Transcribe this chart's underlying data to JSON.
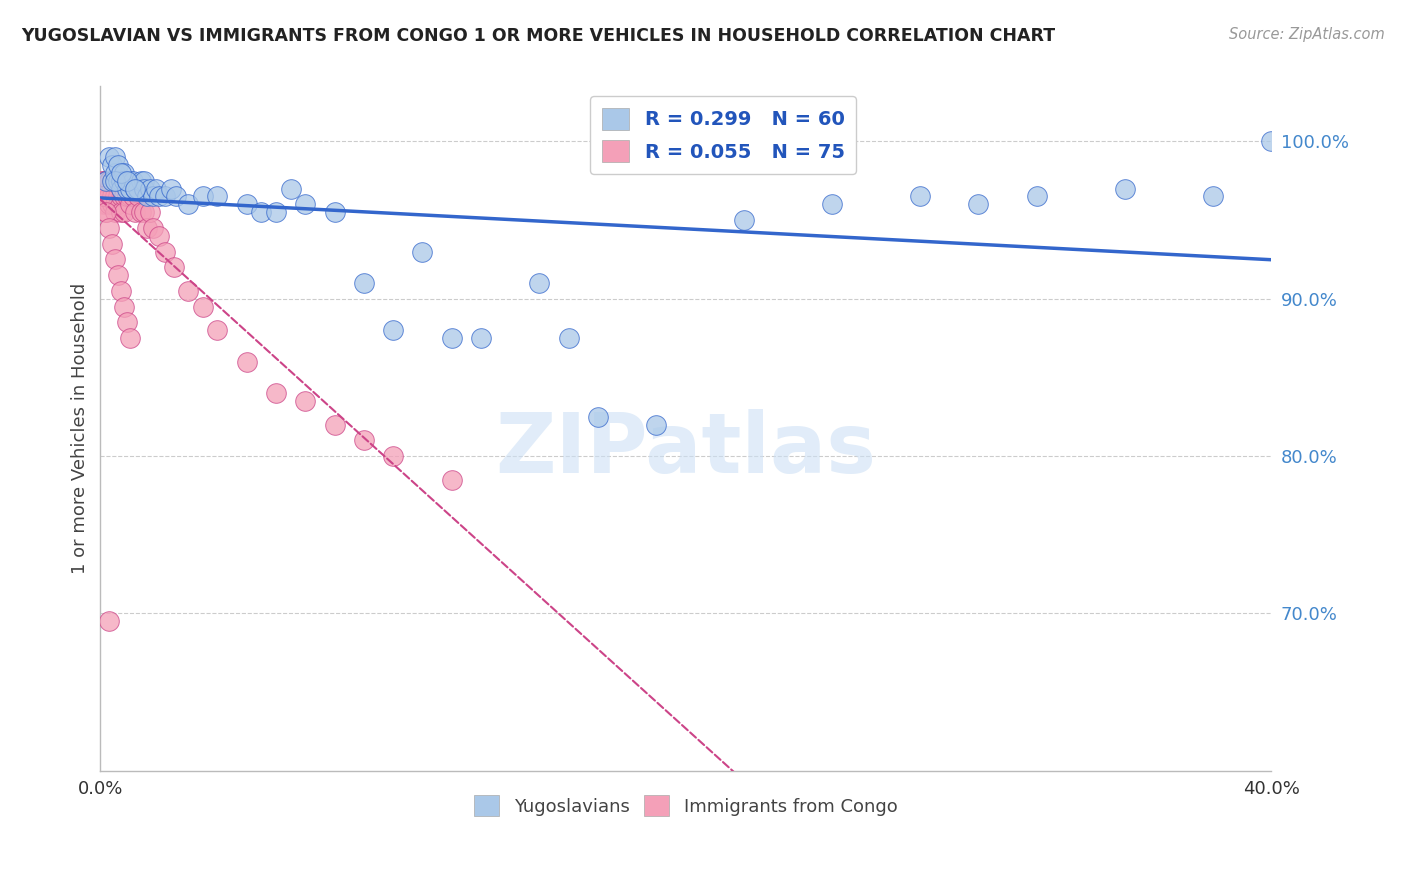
{
  "title": "YUGOSLAVIAN VS IMMIGRANTS FROM CONGO 1 OR MORE VEHICLES IN HOUSEHOLD CORRELATION CHART",
  "source": "Source: ZipAtlas.com",
  "ylabel": "1 or more Vehicles in Household",
  "legend_labels": [
    "Yugoslavians",
    "Immigrants from Congo"
  ],
  "R_yugo": 0.299,
  "N_yugo": 60,
  "R_congo": 0.055,
  "N_congo": 75,
  "xmin": 0.0,
  "xmax": 0.4,
  "ymin": 0.6,
  "ymax": 1.035,
  "yticks": [
    0.7,
    0.8,
    0.9,
    1.0
  ],
  "ytick_labels": [
    "70.0%",
    "80.0%",
    "90.0%",
    "100.0%"
  ],
  "xticks": [
    0.0,
    0.05,
    0.1,
    0.15,
    0.2,
    0.25,
    0.3,
    0.35,
    0.4
  ],
  "xtick_labels": [
    "0.0%",
    "",
    "",
    "",
    "",
    "",
    "",
    "",
    "40.0%"
  ],
  "color_yugo": "#aac8e8",
  "color_congo": "#f4a0b8",
  "trendline_yugo_color": "#3366cc",
  "trendline_congo_color": "#cc4488",
  "background_color": "#ffffff",
  "grid_color": "#cccccc",
  "yugo_x": [
    0.002,
    0.003,
    0.004,
    0.004,
    0.005,
    0.005,
    0.006,
    0.006,
    0.007,
    0.007,
    0.008,
    0.008,
    0.009,
    0.009,
    0.01,
    0.01,
    0.011,
    0.012,
    0.013,
    0.014,
    0.015,
    0.015,
    0.016,
    0.017,
    0.018,
    0.019,
    0.02,
    0.022,
    0.024,
    0.026,
    0.03,
    0.035,
    0.04,
    0.05,
    0.055,
    0.06,
    0.065,
    0.07,
    0.08,
    0.09,
    0.1,
    0.11,
    0.12,
    0.13,
    0.15,
    0.16,
    0.17,
    0.19,
    0.22,
    0.25,
    0.28,
    0.3,
    0.32,
    0.35,
    0.38,
    0.4,
    0.005,
    0.007,
    0.009,
    0.012
  ],
  "yugo_y": [
    0.975,
    0.99,
    0.985,
    0.975,
    0.98,
    0.99,
    0.975,
    0.985,
    0.975,
    0.97,
    0.98,
    0.975,
    0.97,
    0.975,
    0.975,
    0.97,
    0.975,
    0.97,
    0.97,
    0.975,
    0.975,
    0.97,
    0.965,
    0.97,
    0.965,
    0.97,
    0.965,
    0.965,
    0.97,
    0.965,
    0.96,
    0.965,
    0.965,
    0.96,
    0.955,
    0.955,
    0.97,
    0.96,
    0.955,
    0.91,
    0.88,
    0.93,
    0.875,
    0.875,
    0.91,
    0.875,
    0.825,
    0.82,
    0.95,
    0.96,
    0.965,
    0.96,
    0.965,
    0.97,
    0.965,
    1.0,
    0.975,
    0.98,
    0.975,
    0.97
  ],
  "congo_x": [
    0.001,
    0.001,
    0.001,
    0.001,
    0.001,
    0.002,
    0.002,
    0.002,
    0.002,
    0.002,
    0.002,
    0.003,
    0.003,
    0.003,
    0.003,
    0.003,
    0.004,
    0.004,
    0.004,
    0.004,
    0.005,
    0.005,
    0.005,
    0.005,
    0.005,
    0.005,
    0.005,
    0.006,
    0.006,
    0.006,
    0.006,
    0.007,
    0.007,
    0.007,
    0.007,
    0.008,
    0.008,
    0.008,
    0.009,
    0.009,
    0.01,
    0.01,
    0.01,
    0.011,
    0.012,
    0.013,
    0.014,
    0.015,
    0.016,
    0.017,
    0.018,
    0.02,
    0.022,
    0.025,
    0.03,
    0.035,
    0.04,
    0.05,
    0.06,
    0.07,
    0.08,
    0.09,
    0.1,
    0.12,
    0.001,
    0.002,
    0.003,
    0.004,
    0.005,
    0.006,
    0.007,
    0.008,
    0.009,
    0.01,
    0.003
  ],
  "congo_y": [
    0.975,
    0.97,
    0.965,
    0.975,
    0.96,
    0.975,
    0.97,
    0.965,
    0.975,
    0.96,
    0.955,
    0.975,
    0.97,
    0.965,
    0.975,
    0.96,
    0.975,
    0.97,
    0.965,
    0.96,
    0.975,
    0.97,
    0.965,
    0.975,
    0.96,
    0.955,
    0.975,
    0.97,
    0.965,
    0.975,
    0.96,
    0.975,
    0.97,
    0.965,
    0.955,
    0.97,
    0.965,
    0.955,
    0.97,
    0.965,
    0.965,
    0.97,
    0.96,
    0.965,
    0.955,
    0.965,
    0.955,
    0.955,
    0.945,
    0.955,
    0.945,
    0.94,
    0.93,
    0.92,
    0.905,
    0.895,
    0.88,
    0.86,
    0.84,
    0.835,
    0.82,
    0.81,
    0.8,
    0.785,
    0.965,
    0.955,
    0.945,
    0.935,
    0.925,
    0.915,
    0.905,
    0.895,
    0.885,
    0.875,
    0.695
  ]
}
